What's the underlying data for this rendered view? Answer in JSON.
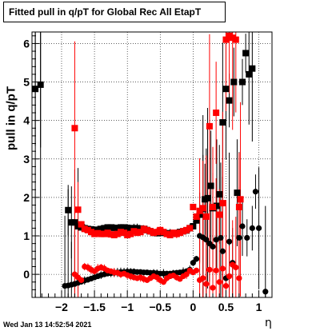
{
  "title": "Fitted pull in q/pT for Global Rec All EtapT",
  "timestamp": "Wed Jan 13 14:52:54 2021",
  "chart_data": {
    "type": "scatter",
    "title": "Fitted pull in q/pT for Global Rec All EtapT",
    "xlabel": "η",
    "ylabel": "pull in q/pT",
    "xlim": [
      -2.45,
      1.2
    ],
    "ylim": [
      -0.6,
      6.3
    ],
    "grid": true,
    "x_ticks": [
      -2,
      -1.5,
      -1,
      -0.5,
      0,
      0.5,
      1
    ],
    "x_tick_labels": [
      "−2",
      "−1.5",
      "−1",
      "−0.5",
      "0",
      "0.5",
      "1"
    ],
    "y_ticks": [
      0,
      1,
      2,
      3,
      4,
      5,
      6
    ],
    "y_tick_labels": [
      "0",
      "1",
      "2",
      "3",
      "4",
      "5",
      "6"
    ],
    "series": [
      {
        "marker": "square",
        "color": "#000000",
        "points": [
          [
            -2.4,
            4.82
          ],
          [
            -2.32,
            4.93
          ],
          [
            -1.9,
            1.67
          ],
          [
            -1.85,
            1.35
          ],
          [
            -1.8,
            1.35
          ],
          [
            -1.75,
            1.25
          ],
          [
            -1.7,
            1.22
          ],
          [
            -1.65,
            1.2
          ],
          [
            -1.6,
            1.18
          ],
          [
            -1.55,
            1.17
          ],
          [
            -1.5,
            1.15
          ],
          [
            -1.45,
            1.16
          ],
          [
            -1.4,
            1.18
          ],
          [
            -1.35,
            1.2
          ],
          [
            -1.3,
            1.22
          ],
          [
            -1.25,
            1.22
          ],
          [
            -1.2,
            1.21
          ],
          [
            -1.15,
            1.2
          ],
          [
            -1.1,
            1.22
          ],
          [
            -1.05,
            1.22
          ],
          [
            -1.0,
            1.21
          ],
          [
            -0.95,
            1.2
          ],
          [
            -0.9,
            1.2
          ],
          [
            -0.85,
            1.2
          ],
          [
            -0.8,
            1.19
          ],
          [
            -0.75,
            1.18
          ],
          [
            -0.7,
            1.15
          ],
          [
            -0.65,
            1.12
          ],
          [
            -0.6,
            1.08
          ],
          [
            -0.55,
            1.07
          ],
          [
            -0.5,
            1.08
          ],
          [
            -0.45,
            1.08
          ],
          [
            -0.4,
            1.07
          ],
          [
            -0.35,
            1.06
          ],
          [
            -0.3,
            1.07
          ],
          [
            -0.25,
            1.07
          ],
          [
            -0.2,
            1.1
          ],
          [
            -0.15,
            1.12
          ],
          [
            -0.1,
            1.14
          ],
          [
            -0.05,
            1.2
          ],
          [
            0.0,
            1.25
          ],
          [
            0.05,
            1.4
          ],
          [
            0.1,
            1.55
          ],
          [
            0.15,
            1.7
          ],
          [
            0.18,
            1.95
          ],
          [
            0.22,
            1.98
          ],
          [
            0.27,
            2.3
          ],
          [
            0.3,
            1.72
          ],
          [
            0.36,
            1.78
          ],
          [
            0.4,
            2.08
          ],
          [
            0.45,
            3.95
          ],
          [
            0.5,
            4.82
          ],
          [
            0.55,
            4.52
          ],
          [
            0.62,
            5.0
          ],
          [
            0.67,
            2.12
          ],
          [
            0.75,
            5.0
          ],
          [
            0.8,
            5.75
          ],
          [
            0.85,
            5.2
          ],
          [
            0.9,
            5.35
          ]
        ]
      },
      {
        "marker": "circle",
        "color": "#000000",
        "points": [
          [
            -1.95,
            -0.3
          ],
          [
            -1.9,
            -0.29
          ],
          [
            -1.85,
            -0.27
          ],
          [
            -1.8,
            -0.25
          ],
          [
            -1.75,
            -0.22
          ],
          [
            -1.7,
            -0.19
          ],
          [
            -1.65,
            -0.16
          ],
          [
            -1.6,
            -0.14
          ],
          [
            -1.55,
            -0.11
          ],
          [
            -1.5,
            -0.08
          ],
          [
            -1.45,
            -0.05
          ],
          [
            -1.4,
            -0.02
          ],
          [
            -1.35,
            0.0
          ],
          [
            -1.3,
            0.02
          ],
          [
            -1.25,
            0.03
          ],
          [
            -1.2,
            0.04
          ],
          [
            -1.15,
            0.05
          ],
          [
            -1.1,
            0.06
          ],
          [
            -1.05,
            0.06
          ],
          [
            -1.0,
            0.07
          ],
          [
            -0.95,
            0.07
          ],
          [
            -0.9,
            0.07
          ],
          [
            -0.85,
            0.06
          ],
          [
            -0.8,
            0.06
          ],
          [
            -0.75,
            0.05
          ],
          [
            -0.7,
            0.05
          ],
          [
            -0.65,
            0.04
          ],
          [
            -0.6,
            0.04
          ],
          [
            -0.55,
            0.03
          ],
          [
            -0.5,
            0.02
          ],
          [
            -0.45,
            0.02
          ],
          [
            -0.4,
            0.02
          ],
          [
            -0.35,
            0.02
          ],
          [
            -0.3,
            0.03
          ],
          [
            -0.25,
            0.04
          ],
          [
            -0.2,
            0.05
          ],
          [
            -0.15,
            0.06
          ],
          [
            -0.1,
            0.08
          ],
          [
            -0.05,
            0.12
          ],
          [
            0.0,
            0.3
          ],
          [
            0.05,
            0.4
          ],
          [
            0.1,
            1.0
          ],
          [
            0.15,
            0.96
          ],
          [
            0.2,
            0.9
          ],
          [
            0.25,
            0.8
          ],
          [
            0.3,
            0.72
          ],
          [
            0.35,
            0.9
          ],
          [
            0.42,
            0.95
          ],
          [
            0.45,
            0.6
          ],
          [
            0.5,
            -0.1
          ],
          [
            0.55,
            0.85
          ],
          [
            0.6,
            0.3
          ],
          [
            0.7,
            0.95
          ],
          [
            0.75,
            1.25
          ],
          [
            0.82,
            0.95
          ],
          [
            0.9,
            1.2
          ],
          [
            0.95,
            2.15
          ],
          [
            1.0,
            1.2
          ],
          [
            1.1,
            -0.45
          ]
        ]
      },
      {
        "marker": "square",
        "color": "#ff0000",
        "points": [
          [
            -1.8,
            3.8
          ],
          [
            -1.75,
            1.68
          ],
          [
            -1.7,
            1.3
          ],
          [
            -1.65,
            1.18
          ],
          [
            -1.6,
            1.15
          ],
          [
            -1.55,
            1.1
          ],
          [
            -1.5,
            1.05
          ],
          [
            -1.45,
            1.07
          ],
          [
            -1.4,
            1.05
          ],
          [
            -1.35,
            1.05
          ],
          [
            -1.3,
            1.08
          ],
          [
            -1.25,
            1.04
          ],
          [
            -1.2,
            1.02
          ],
          [
            -1.15,
            1.05
          ],
          [
            -1.1,
            1.1
          ],
          [
            -1.05,
            1.08
          ],
          [
            -1.0,
            1.02
          ],
          [
            -0.95,
            1.05
          ],
          [
            -0.9,
            1.12
          ],
          [
            -0.85,
            1.08
          ],
          [
            -0.8,
            1.1
          ],
          [
            -0.75,
            1.18
          ],
          [
            -0.7,
            1.15
          ],
          [
            -0.65,
            1.12
          ],
          [
            -0.6,
            1.08
          ],
          [
            -0.55,
            1.1
          ],
          [
            -0.5,
            1.15
          ],
          [
            -0.45,
            1.1
          ],
          [
            -0.4,
            1.05
          ],
          [
            -0.35,
            1.02
          ],
          [
            -0.3,
            1.08
          ],
          [
            -0.25,
            1.05
          ],
          [
            -0.2,
            1.08
          ],
          [
            -0.15,
            1.12
          ],
          [
            -0.1,
            1.15
          ],
          [
            -0.05,
            1.2
          ],
          [
            0.0,
            1.75
          ],
          [
            0.05,
            1.5
          ],
          [
            0.1,
            1.65
          ],
          [
            0.15,
            1.72
          ],
          [
            0.2,
            1.5
          ],
          [
            0.25,
            3.85
          ],
          [
            0.3,
            1.75
          ],
          [
            0.35,
            4.2
          ],
          [
            0.4,
            1.55
          ],
          [
            0.45,
            1.85
          ],
          [
            0.5,
            6.1
          ],
          [
            0.55,
            6.2
          ],
          [
            0.6,
            6.15
          ],
          [
            0.65,
            6.1
          ],
          [
            0.7,
            1.75
          ],
          [
            0.72,
            1.95
          ]
        ]
      },
      {
        "marker": "circle",
        "color": "#ff0000",
        "points": [
          [
            -1.8,
            0.0
          ],
          [
            -1.75,
            -0.08
          ],
          [
            -1.7,
            -0.15
          ],
          [
            -1.65,
            0.2
          ],
          [
            -1.6,
            0.18
          ],
          [
            -1.55,
            0.12
          ],
          [
            -1.5,
            0.08
          ],
          [
            -1.45,
            0.15
          ],
          [
            -1.4,
            0.18
          ],
          [
            -1.35,
            0.15
          ],
          [
            -1.3,
            0.1
          ],
          [
            -1.25,
            0.08
          ],
          [
            -1.2,
            0.05
          ],
          [
            -1.15,
            0.04
          ],
          [
            -1.1,
            0.0
          ],
          [
            -1.05,
            0.02
          ],
          [
            -1.0,
            -0.02
          ],
          [
            -0.95,
            -0.05
          ],
          [
            -0.9,
            -0.08
          ],
          [
            -0.85,
            -0.1
          ],
          [
            -0.8,
            -0.08
          ],
          [
            -0.75,
            -0.12
          ],
          [
            -0.7,
            -0.15
          ],
          [
            -0.65,
            -0.1
          ],
          [
            -0.6,
            -0.05
          ],
          [
            -0.55,
            -0.08
          ],
          [
            -0.5,
            -0.15
          ],
          [
            -0.45,
            -0.2
          ],
          [
            -0.4,
            -0.1
          ],
          [
            -0.35,
            -0.05
          ],
          [
            -0.3,
            -0.03
          ],
          [
            -0.25,
            -0.08
          ],
          [
            -0.2,
            -0.12
          ],
          [
            -0.15,
            -0.05
          ],
          [
            -0.1,
            0.0
          ],
          [
            -0.05,
            0.1
          ],
          [
            0.0,
            0.05
          ],
          [
            0.05,
            0.1
          ],
          [
            0.1,
            -0.15
          ],
          [
            0.15,
            -0.1
          ],
          [
            0.2,
            -0.25
          ],
          [
            0.25,
            0.12
          ],
          [
            0.3,
            -0.35
          ],
          [
            0.35,
            0.1
          ],
          [
            0.4,
            -0.2
          ],
          [
            0.45,
            0.15
          ],
          [
            0.5,
            -0.3
          ],
          [
            0.55,
            -0.05
          ],
          [
            0.6,
            0.25
          ],
          [
            0.65,
            0.18
          ],
          [
            0.7,
            -0.1
          ]
        ]
      }
    ]
  }
}
